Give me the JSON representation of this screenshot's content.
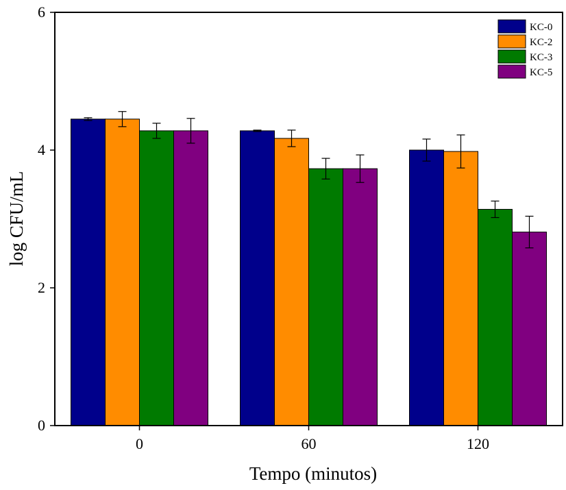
{
  "chart_data": {
    "type": "bar",
    "title": "",
    "xlabel": "Tempo (minutos)",
    "ylabel": "log CFU/mL",
    "categories": [
      "0",
      "60",
      "120"
    ],
    "ylim": [
      0,
      6
    ],
    "yticks": [
      "0",
      "2",
      "4",
      "6"
    ],
    "grid": false,
    "legend_position": "top-right",
    "series": [
      {
        "name": "KC-0",
        "color": "#00008b",
        "values": [
          4.45,
          4.28,
          4.0
        ],
        "errors": [
          0.02,
          0.01,
          0.16
        ]
      },
      {
        "name": "KC-2",
        "color": "#ff8c00",
        "values": [
          4.45,
          4.17,
          3.98
        ],
        "errors": [
          0.11,
          0.12,
          0.24
        ]
      },
      {
        "name": "KC-3",
        "color": "#007a00",
        "values": [
          4.28,
          3.73,
          3.14
        ],
        "errors": [
          0.11,
          0.15,
          0.12
        ]
      },
      {
        "name": "KC-5",
        "color": "#800080",
        "values": [
          4.28,
          3.73,
          2.81
        ],
        "errors": [
          0.18,
          0.2,
          0.23
        ]
      }
    ]
  }
}
